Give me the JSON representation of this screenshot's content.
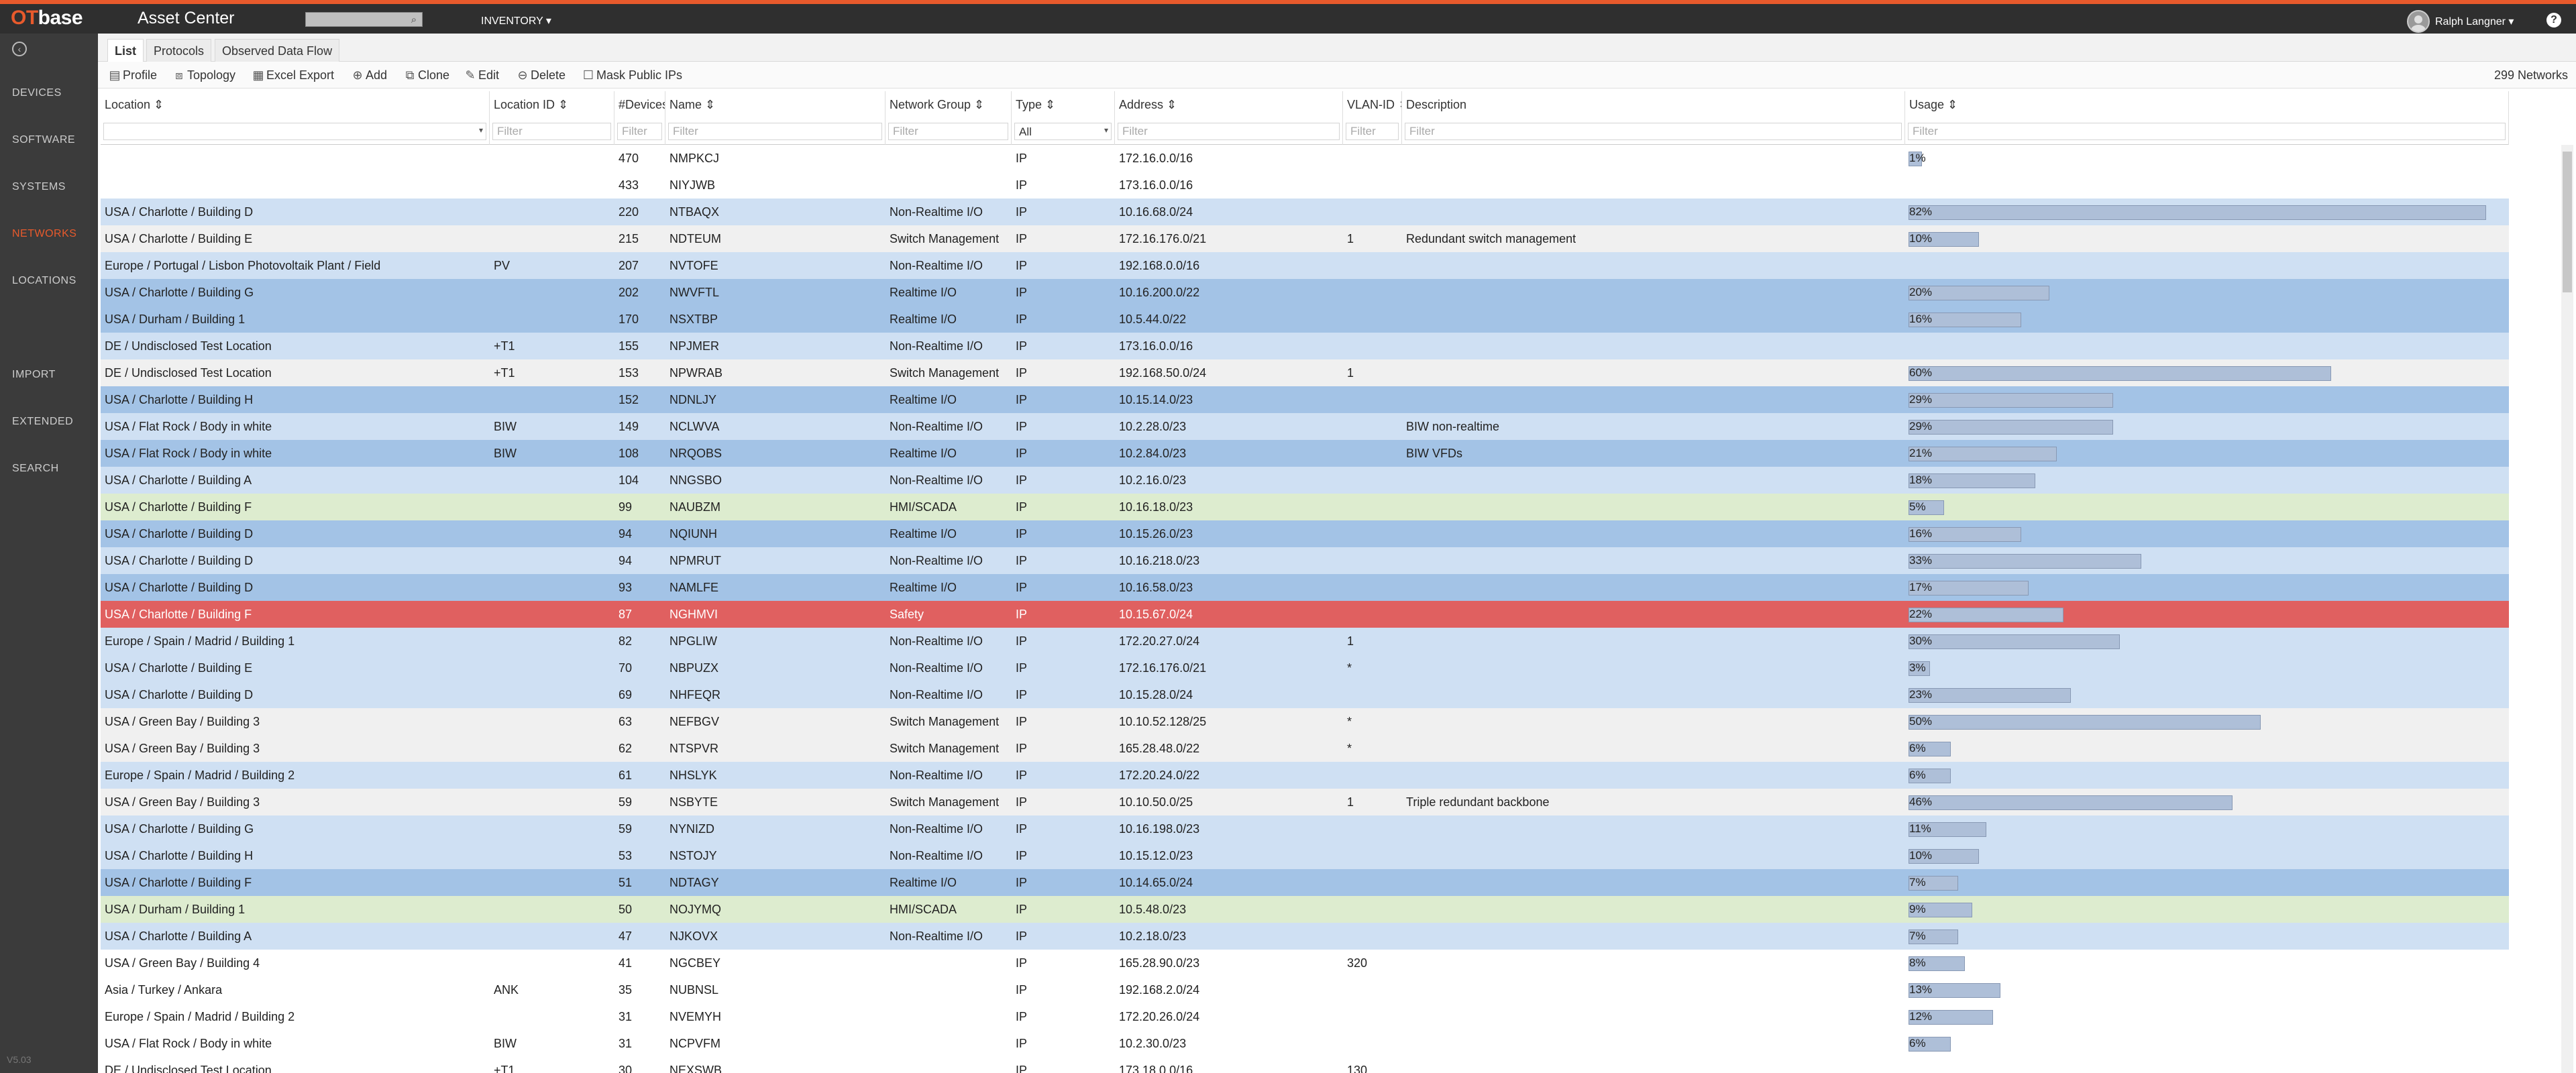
{
  "header": {
    "brand_ot": "OT",
    "brand_base": "base",
    "app_title": "Asset Center",
    "search_value": "",
    "inventory_label": "INVENTORY ▾",
    "user_name": "Ralph Langner ▾",
    "help_label": "?"
  },
  "sidebar": {
    "back_label": "‹",
    "items": [
      {
        "label": "DEVICES"
      },
      {
        "label": "SOFTWARE"
      },
      {
        "label": "SYSTEMS"
      },
      {
        "label": "NETWORKS"
      },
      {
        "label": "LOCATIONS"
      },
      {
        "label": "IMPORT"
      },
      {
        "label": "EXTENDED"
      },
      {
        "label": "SEARCH"
      }
    ],
    "active": "NETWORKS",
    "version": "V5.03"
  },
  "tabs": [
    {
      "label": "List"
    },
    {
      "label": "Protocols"
    },
    {
      "label": "Observed Data Flow"
    }
  ],
  "toolbar": {
    "items": [
      {
        "label": "Profile",
        "icon": "profile-icon"
      },
      {
        "label": "Topology",
        "icon": "topology-icon"
      },
      {
        "label": "Excel Export",
        "icon": "excel-icon"
      },
      {
        "label": "Add",
        "icon": "add-icon"
      },
      {
        "label": "Clone",
        "icon": "clone-icon"
      },
      {
        "label": "Edit",
        "icon": "edit-icon"
      },
      {
        "label": "Delete",
        "icon": "delete-icon"
      },
      {
        "label": "Mask Public IPs",
        "icon": "checkbox-icon"
      }
    ],
    "count": "299 Networks"
  },
  "table": {
    "columns": [
      "Location ⇕",
      "Location ID ⇕",
      "#Devices",
      "Name ⇕",
      "Network Group ⇕",
      "Type ⇕",
      "Address ⇕",
      "VLAN-ID ⇕",
      "Description",
      "Usage ⇕"
    ],
    "filter_placeholder": "Filter",
    "type_filter_value": "All",
    "colors": {
      "white": "#ffffff",
      "grey": "#f0f0f0",
      "light_blue": "#cfe0f3",
      "blue": "#a3c3e6",
      "green": "#ddeccf",
      "red": "#e06060"
    },
    "rows": [
      {
        "location": "",
        "loc_id": "",
        "devices": "470",
        "name": "NMPKCJ",
        "group": "",
        "type": "IP",
        "address": "172.16.0.0/16",
        "vlan": "",
        "desc": "",
        "usage": "1%",
        "usage_val": 0.01,
        "color": "white"
      },
      {
        "location": "",
        "loc_id": "",
        "devices": "433",
        "name": "NIYJWB",
        "group": "",
        "type": "IP",
        "address": "173.16.0.0/16",
        "vlan": "",
        "desc": "",
        "usage": "",
        "usage_val": 0,
        "color": "white"
      },
      {
        "location": "USA / Charlotte / Building D",
        "loc_id": "",
        "devices": "220",
        "name": "NTBAQX",
        "group": "Non-Realtime I/O",
        "type": "IP",
        "address": "10.16.68.0/24",
        "vlan": "",
        "desc": "",
        "usage": "82%",
        "usage_val": 0.82,
        "color": "light_blue"
      },
      {
        "location": "USA / Charlotte / Building E",
        "loc_id": "",
        "devices": "215",
        "name": "NDTEUM",
        "group": "Switch Management",
        "type": "IP",
        "address": "172.16.176.0/21",
        "vlan": "1",
        "desc": "Redundant switch management",
        "usage": "10%",
        "usage_val": 0.1,
        "color": "grey"
      },
      {
        "location": "Europe / Portugal / Lisbon Photovoltaik Plant / Field",
        "loc_id": "PV",
        "devices": "207",
        "name": "NVTOFE",
        "group": "Non-Realtime I/O",
        "type": "IP",
        "address": "192.168.0.0/16",
        "vlan": "",
        "desc": "",
        "usage": "",
        "usage_val": 0,
        "color": "light_blue"
      },
      {
        "location": "USA / Charlotte / Building G",
        "loc_id": "",
        "devices": "202",
        "name": "NWVFTL",
        "group": "Realtime I/O",
        "type": "IP",
        "address": "10.16.200.0/22",
        "vlan": "",
        "desc": "",
        "usage": "20%",
        "usage_val": 0.2,
        "color": "blue"
      },
      {
        "location": "USA / Durham / Building 1",
        "loc_id": "",
        "devices": "170",
        "name": "NSXTBP",
        "group": "Realtime I/O",
        "type": "IP",
        "address": "10.5.44.0/22",
        "vlan": "",
        "desc": "",
        "usage": "16%",
        "usage_val": 0.16,
        "color": "blue"
      },
      {
        "location": "DE / Undisclosed Test Location",
        "loc_id": "+T1",
        "devices": "155",
        "name": "NPJMER",
        "group": "Non-Realtime I/O",
        "type": "IP",
        "address": "173.16.0.0/16",
        "vlan": "",
        "desc": "",
        "usage": "",
        "usage_val": 0,
        "color": "light_blue"
      },
      {
        "location": "DE / Undisclosed Test Location",
        "loc_id": "+T1",
        "devices": "153",
        "name": "NPWRAB",
        "group": "Switch Management",
        "type": "IP",
        "address": "192.168.50.0/24",
        "vlan": "1",
        "desc": "",
        "usage": "60%",
        "usage_val": 0.6,
        "color": "grey"
      },
      {
        "location": "USA / Charlotte / Building H",
        "loc_id": "",
        "devices": "152",
        "name": "NDNLJY",
        "group": "Realtime I/O",
        "type": "IP",
        "address": "10.15.14.0/23",
        "vlan": "",
        "desc": "",
        "usage": "29%",
        "usage_val": 0.29,
        "color": "blue"
      },
      {
        "location": "USA / Flat Rock / Body in white",
        "loc_id": "BIW",
        "devices": "149",
        "name": "NCLWVA",
        "group": "Non-Realtime I/O",
        "type": "IP",
        "address": "10.2.28.0/23",
        "vlan": "",
        "desc": "BIW non-realtime",
        "usage": "29%",
        "usage_val": 0.29,
        "color": "light_blue"
      },
      {
        "location": "USA / Flat Rock / Body in white",
        "loc_id": "BIW",
        "devices": "108",
        "name": "NRQOBS",
        "group": "Realtime I/O",
        "type": "IP",
        "address": "10.2.84.0/23",
        "vlan": "",
        "desc": "BIW VFDs",
        "usage": "21%",
        "usage_val": 0.21,
        "color": "blue"
      },
      {
        "location": "USA / Charlotte / Building A",
        "loc_id": "",
        "devices": "104",
        "name": "NNGSBO",
        "group": "Non-Realtime I/O",
        "type": "IP",
        "address": "10.2.16.0/23",
        "vlan": "",
        "desc": "",
        "usage": "18%",
        "usage_val": 0.18,
        "color": "light_blue"
      },
      {
        "location": "USA / Charlotte / Building F",
        "loc_id": "",
        "devices": "99",
        "name": "NAUBZM",
        "group": "HMI/SCADA",
        "type": "IP",
        "address": "10.16.18.0/23",
        "vlan": "",
        "desc": "",
        "usage": "5%",
        "usage_val": 0.05,
        "color": "green"
      },
      {
        "location": "USA / Charlotte / Building D",
        "loc_id": "",
        "devices": "94",
        "name": "NQIUNH",
        "group": "Realtime I/O",
        "type": "IP",
        "address": "10.15.26.0/23",
        "vlan": "",
        "desc": "",
        "usage": "16%",
        "usage_val": 0.16,
        "color": "blue"
      },
      {
        "location": "USA / Charlotte / Building D",
        "loc_id": "",
        "devices": "94",
        "name": "NPMRUT",
        "group": "Non-Realtime I/O",
        "type": "IP",
        "address": "10.16.218.0/23",
        "vlan": "",
        "desc": "",
        "usage": "33%",
        "usage_val": 0.33,
        "color": "light_blue"
      },
      {
        "location": "USA / Charlotte / Building D",
        "loc_id": "",
        "devices": "93",
        "name": "NAMLFE",
        "group": "Realtime I/O",
        "type": "IP",
        "address": "10.16.58.0/23",
        "vlan": "",
        "desc": "",
        "usage": "17%",
        "usage_val": 0.17,
        "color": "blue"
      },
      {
        "location": "USA / Charlotte / Building F",
        "loc_id": "",
        "devices": "87",
        "name": "NGHMVI",
        "group": "Safety",
        "type": "IP",
        "address": "10.15.67.0/24",
        "vlan": "",
        "desc": "",
        "usage": "22%",
        "usage_val": 0.22,
        "color": "red"
      },
      {
        "location": "Europe / Spain / Madrid / Building 1",
        "loc_id": "",
        "devices": "82",
        "name": "NPGLIW",
        "group": "Non-Realtime I/O",
        "type": "IP",
        "address": "172.20.27.0/24",
        "vlan": "1",
        "desc": "",
        "usage": "30%",
        "usage_val": 0.3,
        "color": "light_blue"
      },
      {
        "location": "USA / Charlotte / Building E",
        "loc_id": "",
        "devices": "70",
        "name": "NBPUZX",
        "group": "Non-Realtime I/O",
        "type": "IP",
        "address": "172.16.176.0/21",
        "vlan": "*",
        "desc": "",
        "usage": "3%",
        "usage_val": 0.03,
        "color": "light_blue"
      },
      {
        "location": "USA / Charlotte / Building D",
        "loc_id": "",
        "devices": "69",
        "name": "NHFEQR",
        "group": "Non-Realtime I/O",
        "type": "IP",
        "address": "10.15.28.0/24",
        "vlan": "",
        "desc": "",
        "usage": "23%",
        "usage_val": 0.23,
        "color": "light_blue"
      },
      {
        "location": "USA / Green Bay / Building 3",
        "loc_id": "",
        "devices": "63",
        "name": "NEFBGV",
        "group": "Switch Management",
        "type": "IP",
        "address": "10.10.52.128/25",
        "vlan": "*",
        "desc": "",
        "usage": "50%",
        "usage_val": 0.5,
        "color": "grey"
      },
      {
        "location": "USA / Green Bay / Building 3",
        "loc_id": "",
        "devices": "62",
        "name": "NTSPVR",
        "group": "Switch Management",
        "type": "IP",
        "address": "165.28.48.0/22",
        "vlan": "*",
        "desc": "",
        "usage": "6%",
        "usage_val": 0.06,
        "color": "grey"
      },
      {
        "location": "Europe / Spain / Madrid / Building 2",
        "loc_id": "",
        "devices": "61",
        "name": "NHSLYK",
        "group": "Non-Realtime I/O",
        "type": "IP",
        "address": "172.20.24.0/22",
        "vlan": "",
        "desc": "",
        "usage": "6%",
        "usage_val": 0.06,
        "color": "light_blue"
      },
      {
        "location": "USA / Green Bay / Building 3",
        "loc_id": "",
        "devices": "59",
        "name": "NSBYTE",
        "group": "Switch Management",
        "type": "IP",
        "address": "10.10.50.0/25",
        "vlan": "1",
        "desc": "Triple redundant backbone",
        "usage": "46%",
        "usage_val": 0.46,
        "color": "grey"
      },
      {
        "location": "USA / Charlotte / Building G",
        "loc_id": "",
        "devices": "59",
        "name": "NYNIZD",
        "group": "Non-Realtime I/O",
        "type": "IP",
        "address": "10.16.198.0/23",
        "vlan": "",
        "desc": "",
        "usage": "11%",
        "usage_val": 0.11,
        "color": "light_blue"
      },
      {
        "location": "USA / Charlotte / Building H",
        "loc_id": "",
        "devices": "53",
        "name": "NSTOJY",
        "group": "Non-Realtime I/O",
        "type": "IP",
        "address": "10.15.12.0/23",
        "vlan": "",
        "desc": "",
        "usage": "10%",
        "usage_val": 0.1,
        "color": "light_blue"
      },
      {
        "location": "USA / Charlotte / Building F",
        "loc_id": "",
        "devices": "51",
        "name": "NDTAGY",
        "group": "Realtime I/O",
        "type": "IP",
        "address": "10.14.65.0/24",
        "vlan": "",
        "desc": "",
        "usage": "7%",
        "usage_val": 0.07,
        "color": "blue"
      },
      {
        "location": "USA / Durham / Building 1",
        "loc_id": "",
        "devices": "50",
        "name": "NOJYMQ",
        "group": "HMI/SCADA",
        "type": "IP",
        "address": "10.5.48.0/23",
        "vlan": "",
        "desc": "",
        "usage": "9%",
        "usage_val": 0.09,
        "color": "green"
      },
      {
        "location": "USA / Charlotte / Building A",
        "loc_id": "",
        "devices": "47",
        "name": "NJKOVX",
        "group": "Non-Realtime I/O",
        "type": "IP",
        "address": "10.2.18.0/23",
        "vlan": "",
        "desc": "",
        "usage": "7%",
        "usage_val": 0.07,
        "color": "light_blue"
      },
      {
        "location": "USA / Green Bay / Building 4",
        "loc_id": "",
        "devices": "41",
        "name": "NGCBEY",
        "group": "",
        "type": "IP",
        "address": "165.28.90.0/23",
        "vlan": "320",
        "desc": "",
        "usage": "8%",
        "usage_val": 0.08,
        "color": "white"
      },
      {
        "location": "Asia / Turkey / Ankara",
        "loc_id": "ANK",
        "devices": "35",
        "name": "NUBNSL",
        "group": "",
        "type": "IP",
        "address": "192.168.2.0/24",
        "vlan": "",
        "desc": "",
        "usage": "13%",
        "usage_val": 0.13,
        "color": "white"
      },
      {
        "location": "Europe / Spain / Madrid / Building 2",
        "loc_id": "",
        "devices": "31",
        "name": "NVEMYH",
        "group": "",
        "type": "IP",
        "address": "172.20.26.0/24",
        "vlan": "",
        "desc": "",
        "usage": "12%",
        "usage_val": 0.12,
        "color": "white"
      },
      {
        "location": "USA / Flat Rock / Body in white",
        "loc_id": "BIW",
        "devices": "31",
        "name": "NCPVFM",
        "group": "",
        "type": "IP",
        "address": "10.2.30.0/23",
        "vlan": "",
        "desc": "",
        "usage": "6%",
        "usage_val": 0.06,
        "color": "white"
      },
      {
        "location": "DE / Undisclosed Test Location",
        "loc_id": "+T1",
        "devices": "30",
        "name": "NEXSWB",
        "group": "",
        "type": "IP",
        "address": "173.18.0.0/16",
        "vlan": "130",
        "desc": "",
        "usage": "",
        "usage_val": 0,
        "color": "white"
      }
    ]
  }
}
